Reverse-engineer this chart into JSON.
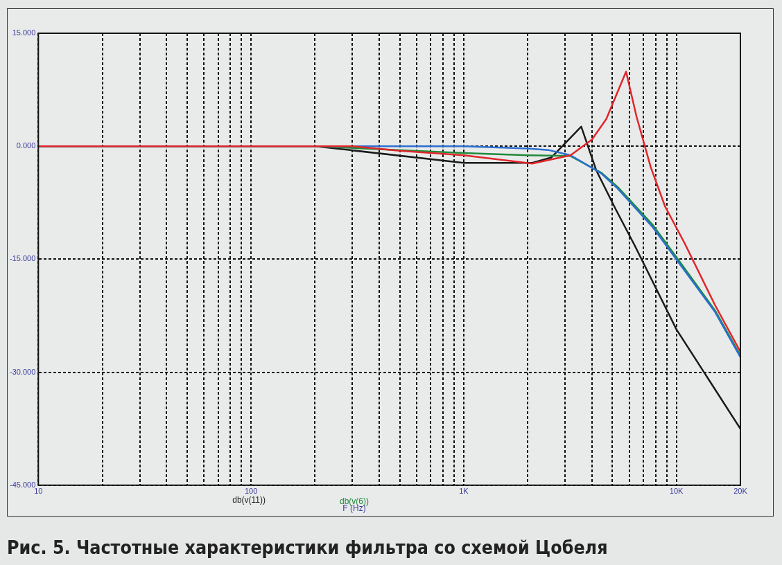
{
  "chart_data": {
    "type": "line",
    "title": "Рис. 5. Частотные характеристики фильтра со схемой Цобеля",
    "xlabel": "F (Hz)",
    "log": "x",
    "grid": true,
    "marker": "none",
    "legend": "bottom",
    "xlim": [
      10,
      20000
    ],
    "ylim": [
      -45,
      15
    ],
    "xticks": [
      {
        "value": 10,
        "label": "10"
      },
      {
        "value": 20,
        "label": null
      },
      {
        "value": 30,
        "label": null
      },
      {
        "value": 40,
        "label": null
      },
      {
        "value": 50,
        "label": null
      },
      {
        "value": 60,
        "label": null
      },
      {
        "value": 70,
        "label": null
      },
      {
        "value": 80,
        "label": null
      },
      {
        "value": 90,
        "label": null
      },
      {
        "value": 100,
        "label": "100"
      },
      {
        "value": 200,
        "label": null
      },
      {
        "value": 300,
        "label": null
      },
      {
        "value": 400,
        "label": null
      },
      {
        "value": 500,
        "label": null
      },
      {
        "value": 600,
        "label": null
      },
      {
        "value": 700,
        "label": null
      },
      {
        "value": 800,
        "label": null
      },
      {
        "value": 900,
        "label": null
      },
      {
        "value": 1000,
        "label": "1K"
      },
      {
        "value": 2000,
        "label": null
      },
      {
        "value": 3000,
        "label": null
      },
      {
        "value": 4000,
        "label": null
      },
      {
        "value": 5000,
        "label": null
      },
      {
        "value": 6000,
        "label": null
      },
      {
        "value": 7000,
        "label": null
      },
      {
        "value": 8000,
        "label": null
      },
      {
        "value": 9000,
        "label": null
      },
      {
        "value": 10000,
        "label": "10K"
      },
      {
        "value": 20000,
        "label": "20K"
      }
    ],
    "yticks": [
      {
        "value": 15,
        "label": "15.000"
      },
      {
        "value": 0,
        "label": "0.000"
      },
      {
        "value": -15,
        "label": "-15.000"
      },
      {
        "value": -30,
        "label": "-30.000"
      },
      {
        "value": -45,
        "label": "-45.000"
      }
    ],
    "series": [
      {
        "color": "#e0262a",
        "x": [
          10,
          100,
          300,
          500,
          1000,
          2100,
          3180,
          4010,
          4680,
          5800,
          6500,
          7580,
          8850,
          10900,
          15200,
          20000
        ],
        "values": [
          0,
          0,
          0,
          -0.6,
          -1.2,
          -2.3,
          -1.2,
          0.9,
          3.6,
          9.9,
          3.9,
          -2.8,
          -8.0,
          -12.8,
          -21.1,
          -27.3
        ]
      },
      {
        "color": "#2a6fd0",
        "x": [
          10,
          100,
          1000,
          2000,
          2500,
          3180,
          4430,
          5290,
          7770,
          10600,
          15200,
          20000
        ],
        "values": [
          0,
          0,
          0,
          -0.3,
          -0.5,
          -1.2,
          -3.6,
          -5.6,
          -10.8,
          -16.0,
          -22.0,
          -28.0
        ]
      },
      {
        "name": "db(v(6))",
        "color": "#1e8a3a",
        "x": [
          10,
          100,
          200,
          1000,
          2000,
          3180,
          4430,
          5290,
          7770,
          10600,
          15200,
          20000
        ],
        "values": [
          0,
          0,
          0,
          -0.9,
          -1.2,
          -1.3,
          -3.5,
          -5.4,
          -10.5,
          -15.7,
          -21.8,
          -27.8
        ]
      },
      {
        "name": "db(v(11))",
        "color": "#1a1a1a",
        "x": [
          10,
          100,
          201,
          1000,
          2100,
          2580,
          3570,
          4200,
          5170,
          6350,
          10000,
          20000
        ],
        "values": [
          0,
          0,
          0,
          -2.2,
          -2.2,
          -1.5,
          2.6,
          -3.2,
          -8.3,
          -13.1,
          -24.3,
          -37.5
        ]
      }
    ]
  }
}
